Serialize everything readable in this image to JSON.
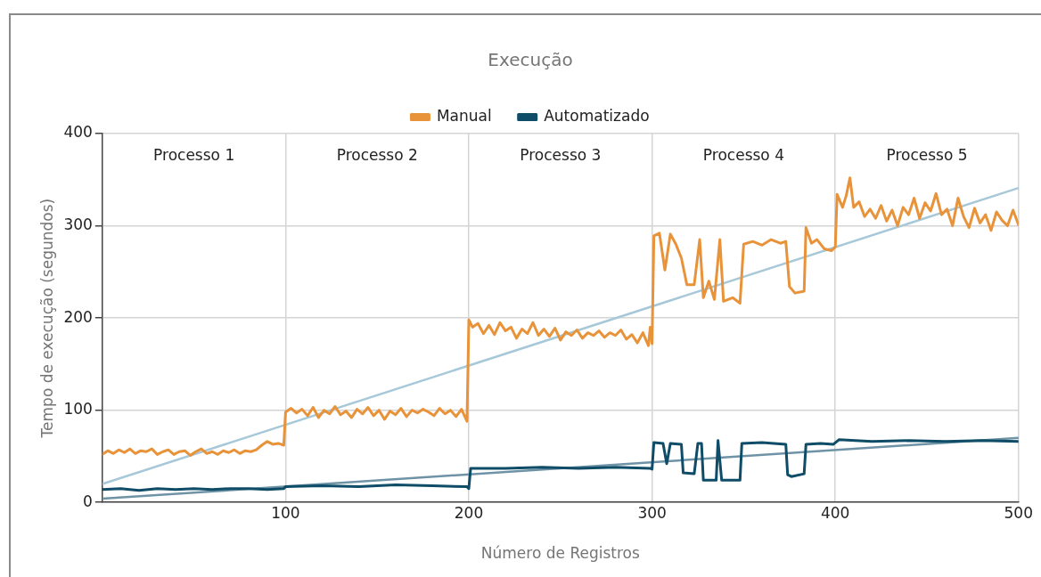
{
  "chart_data": {
    "type": "line",
    "title": "Execução",
    "xlabel": "Número de Registros",
    "ylabel": "Tempo de execução (segundos)",
    "xlim": [
      0,
      500
    ],
    "xticks": [
      100,
      200,
      300,
      400,
      500
    ],
    "ylim": [
      0,
      400
    ],
    "yticks": [
      0,
      100,
      200,
      300,
      400
    ],
    "grid": true,
    "legend": "top",
    "marker": "none",
    "line_style": "solid",
    "annotations": [
      "Processo 1",
      "Processo 2",
      "Processo 3",
      "Processo 4",
      "Processo 5"
    ],
    "series": [
      {
        "name": "Manual",
        "color": "#e8933a",
        "x": [
          0,
          3,
          6,
          9,
          12,
          15,
          18,
          21,
          24,
          27,
          30,
          33,
          36,
          39,
          42,
          45,
          48,
          51,
          54,
          57,
          60,
          63,
          66,
          69,
          72,
          75,
          78,
          81,
          84,
          87,
          90,
          93,
          96,
          99,
          100,
          103,
          106,
          109,
          112,
          115,
          118,
          121,
          124,
          127,
          130,
          133,
          136,
          139,
          142,
          145,
          148,
          151,
          154,
          157,
          160,
          163,
          166,
          169,
          172,
          175,
          178,
          181,
          184,
          187,
          190,
          193,
          196,
          199,
          200,
          202,
          205,
          208,
          211,
          214,
          217,
          220,
          223,
          226,
          229,
          232,
          235,
          238,
          241,
          244,
          247,
          250,
          253,
          256,
          259,
          262,
          265,
          268,
          271,
          274,
          277,
          280,
          283,
          286,
          289,
          292,
          295,
          298,
          299,
          300,
          301,
          304,
          307,
          310,
          313,
          316,
          319,
          323,
          326,
          328,
          331,
          334,
          337,
          339,
          344,
          348,
          350,
          355,
          360,
          365,
          370,
          373,
          375,
          378,
          383,
          384,
          387,
          390,
          394,
          398,
          400,
          401,
          404,
          406,
          408,
          410,
          413,
          416,
          419,
          422,
          425,
          428,
          431,
          434,
          437,
          440,
          443,
          446,
          449,
          452,
          455,
          458,
          461,
          464,
          467,
          470,
          473,
          476,
          479,
          482,
          485,
          488,
          491,
          494,
          497,
          500
        ],
        "values": [
          52,
          56,
          53,
          57,
          54,
          58,
          53,
          56,
          55,
          58,
          52,
          55,
          57,
          52,
          55,
          56,
          51,
          55,
          58,
          53,
          55,
          52,
          56,
          54,
          57,
          53,
          56,
          55,
          57,
          62,
          66,
          63,
          64,
          62,
          98,
          102,
          97,
          101,
          94,
          103,
          92,
          100,
          96,
          104,
          95,
          99,
          92,
          101,
          96,
          103,
          94,
          100,
          90,
          99,
          95,
          102,
          93,
          100,
          97,
          101,
          98,
          94,
          102,
          96,
          100,
          93,
          101,
          88,
          198,
          190,
          194,
          183,
          192,
          182,
          195,
          186,
          190,
          178,
          188,
          183,
          195,
          181,
          188,
          180,
          189,
          176,
          185,
          181,
          187,
          178,
          184,
          181,
          186,
          179,
          184,
          181,
          187,
          177,
          182,
          173,
          184,
          170,
          190,
          172,
          289,
          292,
          252,
          291,
          280,
          265,
          236,
          236,
          285,
          222,
          240,
          220,
          285,
          218,
          222,
          216,
          280,
          283,
          279,
          285,
          281,
          283,
          234,
          227,
          229,
          298,
          281,
          285,
          275,
          273,
          277,
          334,
          320,
          333,
          352,
          320,
          326,
          310,
          318,
          308,
          322,
          305,
          317,
          300,
          320,
          312,
          330,
          308,
          325,
          316,
          335,
          312,
          318,
          300,
          330,
          310,
          298,
          319,
          303,
          312,
          295,
          315,
          306,
          300,
          317,
          301
        ]
      },
      {
        "name": "Automatizado",
        "color": "#0f4c68",
        "x": [
          0,
          10,
          20,
          30,
          40,
          50,
          60,
          70,
          80,
          90,
          99,
          100,
          120,
          140,
          160,
          180,
          199,
          200,
          201,
          220,
          240,
          260,
          280,
          299,
          300,
          301,
          306,
          308,
          310,
          316,
          317,
          323,
          325,
          327,
          328,
          335,
          336,
          338,
          348,
          349,
          360,
          373,
          374,
          376,
          383,
          384,
          392,
          399,
          402,
          420,
          440,
          460,
          480,
          500
        ],
        "values": [
          14,
          15,
          13,
          15,
          14,
          15,
          14,
          15,
          15,
          14,
          15,
          17,
          18,
          17,
          19,
          18,
          17,
          15,
          37,
          37,
          38,
          37,
          38,
          37,
          36,
          65,
          64,
          42,
          64,
          63,
          32,
          31,
          64,
          64,
          24,
          24,
          67,
          24,
          24,
          64,
          65,
          63,
          30,
          28,
          31,
          63,
          64,
          63,
          68,
          66,
          67,
          66,
          67,
          66
        ]
      },
      {
        "color": "#a6c8d8",
        "x": [
          0,
          500
        ],
        "values": [
          20,
          341
        ]
      },
      {
        "color": "#6f93a6",
        "x": [
          0,
          500
        ],
        "values": [
          4,
          70
        ]
      }
    ]
  }
}
